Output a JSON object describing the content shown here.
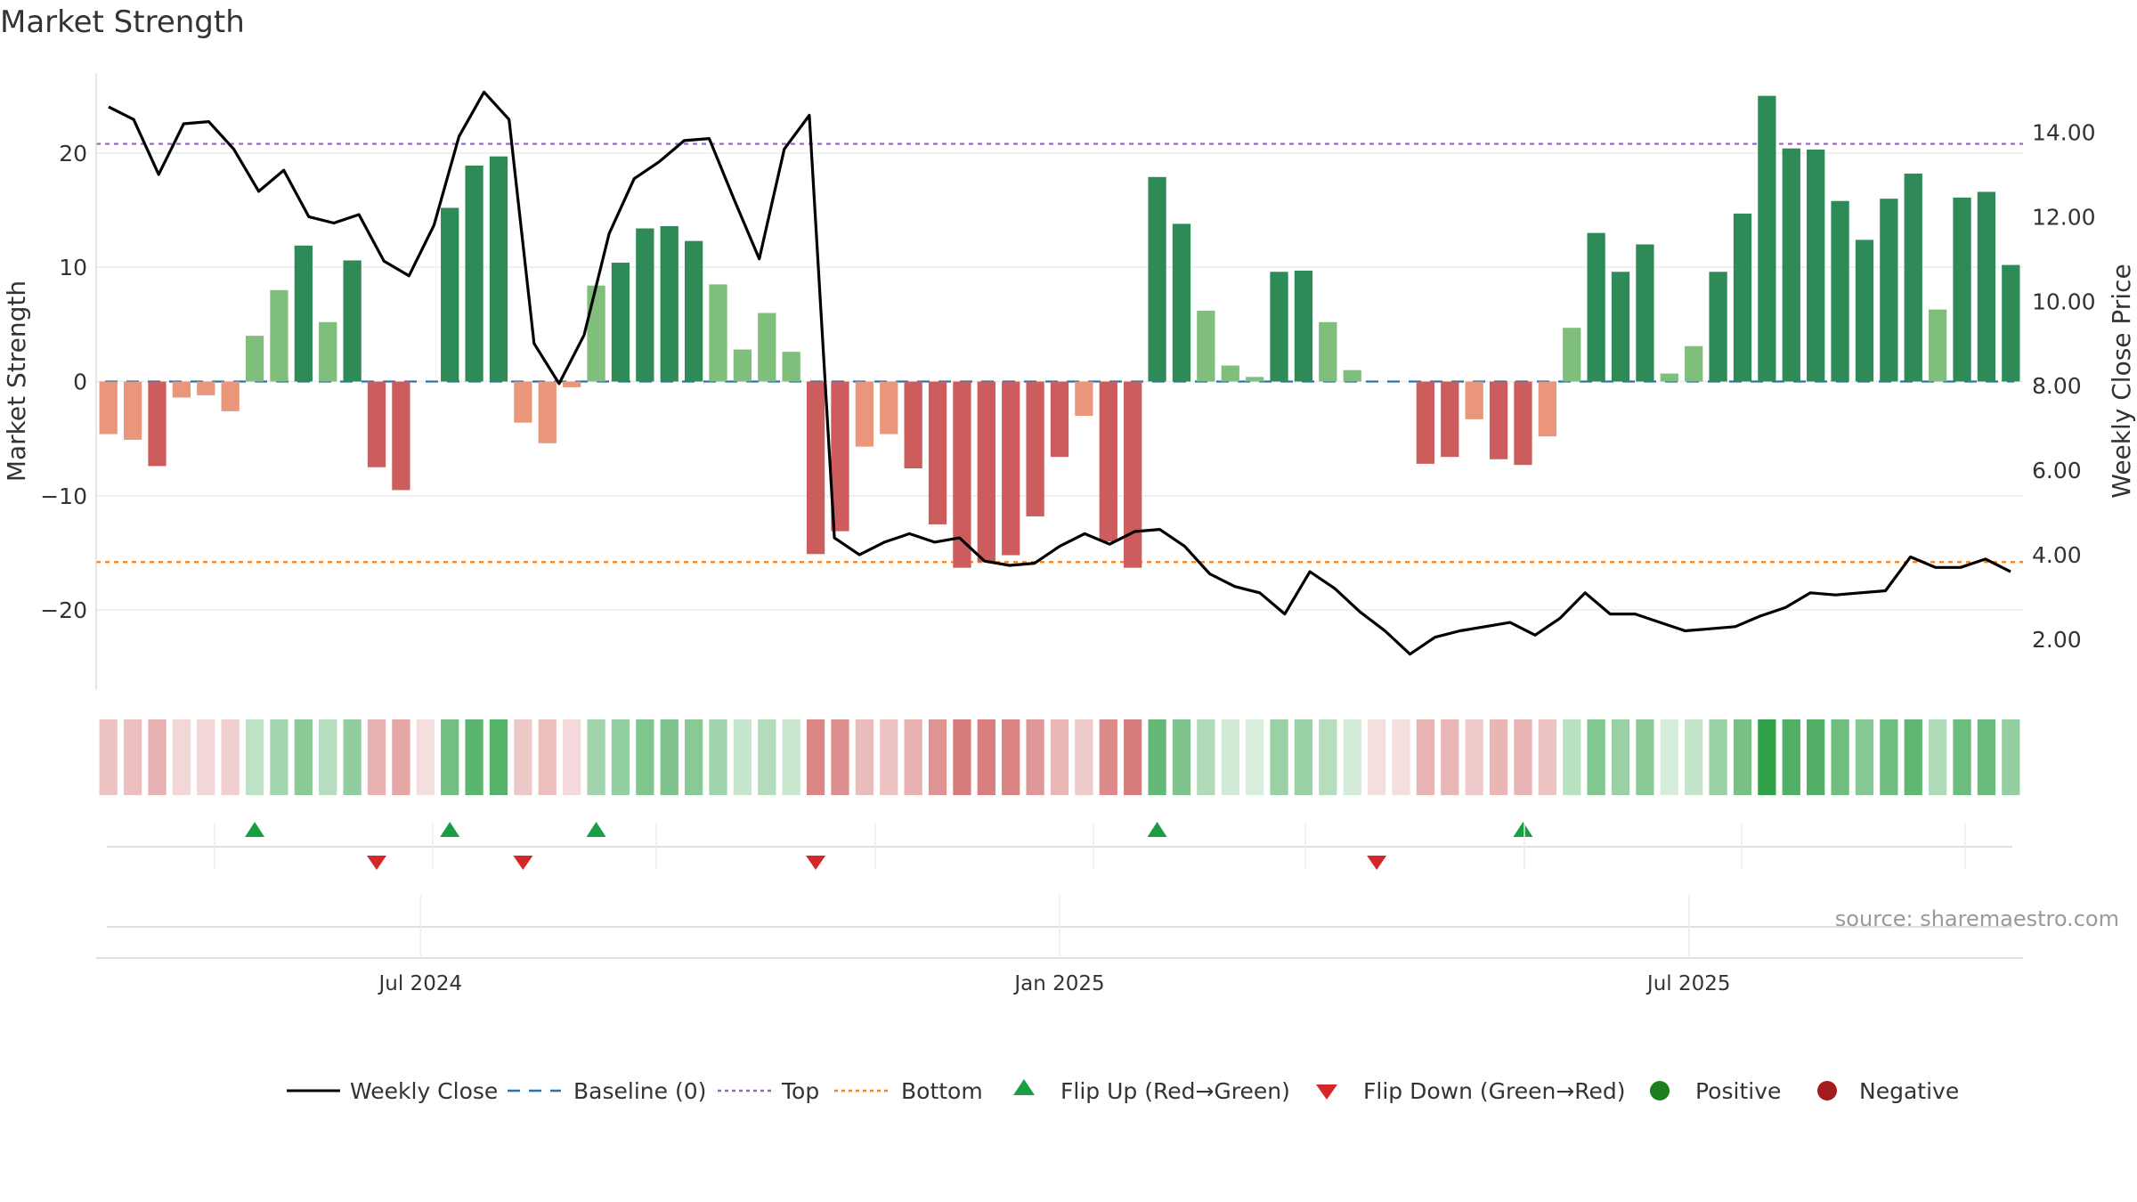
{
  "chart_data": {
    "type": "bar",
    "title": "Market Strength",
    "ylabel_left": "Market Strength",
    "ylabel_right": "Weekly Close Price",
    "ylim_left": [
      -27,
      27
    ],
    "ylim_right": [
      0.8,
      15.4
    ],
    "left_ticks": [
      {
        "value": 20,
        "label": "20"
      },
      {
        "value": 10,
        "label": "10"
      },
      {
        "value": 0,
        "label": "0"
      },
      {
        "value": -10,
        "label": "−10"
      },
      {
        "value": -20,
        "label": "−20"
      }
    ],
    "right_ticks": [
      {
        "value": 14,
        "label": "14.00"
      },
      {
        "value": 12,
        "label": "12.00"
      },
      {
        "value": 10,
        "label": "10.00"
      },
      {
        "value": 8,
        "label": "8.00"
      },
      {
        "value": 6,
        "label": "6.00"
      },
      {
        "value": 4,
        "label": "4.00"
      },
      {
        "value": 2,
        "label": "2.00"
      }
    ],
    "x_ticks": [
      {
        "week": 13.3,
        "label": "Jul 2024"
      },
      {
        "week": 39.5,
        "label": "Jan 2025"
      },
      {
        "week": 65.3,
        "label": "Jul 2025"
      }
    ],
    "top_line": 20.8,
    "bottom_line": -15.8,
    "strength": [
      -4.6,
      -5.1,
      -7.4,
      -1.4,
      -1.2,
      -2.6,
      4.0,
      8.0,
      11.9,
      5.2,
      10.6,
      -7.5,
      -9.5,
      0,
      15.2,
      18.9,
      19.7,
      -3.6,
      -5.4,
      -0.5,
      8.4,
      10.4,
      13.4,
      13.6,
      12.3,
      8.5,
      2.8,
      6.0,
      2.6,
      -15.1,
      -13.1,
      -5.7,
      -4.6,
      -7.6,
      -12.5,
      -16.3,
      -15.8,
      -15.2,
      -11.8,
      -6.6,
      -3.0,
      -14.0,
      -16.3,
      17.9,
      13.8,
      6.2,
      1.4,
      0.4,
      9.6,
      9.7,
      5.2,
      1.0,
      0,
      0,
      -7.2,
      -6.6,
      -3.3,
      -6.8,
      -7.3,
      -4.8,
      4.7,
      13.0,
      9.6,
      12.0,
      0.7,
      3.1,
      9.6,
      14.7,
      25.0,
      20.4,
      20.3,
      15.8,
      12.4,
      16.0,
      18.2,
      6.3,
      16.1,
      16.6,
      10.2
    ],
    "weekly_close": [
      14.6,
      14.3,
      13.0,
      14.2,
      14.25,
      13.6,
      12.6,
      13.1,
      12.0,
      11.85,
      12.05,
      10.95,
      10.6,
      11.8,
      13.9,
      14.95,
      14.3,
      9.0,
      8.05,
      9.2,
      11.6,
      12.9,
      13.3,
      13.8,
      13.85,
      12.4,
      11.0,
      13.6,
      14.4,
      4.4,
      4.0,
      4.3,
      4.5,
      4.3,
      4.4,
      3.85,
      3.75,
      3.8,
      4.2,
      4.5,
      4.25,
      4.55,
      4.6,
      4.2,
      3.55,
      3.25,
      3.1,
      2.6,
      3.6,
      3.2,
      2.65,
      2.2,
      1.65,
      2.05,
      2.2,
      2.3,
      2.4,
      2.1,
      2.5,
      3.1,
      2.6,
      2.6,
      2.4,
      2.2,
      2.25,
      2.3,
      2.55,
      2.75,
      3.1,
      3.05,
      3.1,
      3.15,
      3.95,
      3.7,
      3.7,
      3.9,
      3.6
    ],
    "flips": [
      {
        "week": 6,
        "dir": "up"
      },
      {
        "week": 11,
        "dir": "down"
      },
      {
        "week": 14,
        "dir": "up"
      },
      {
        "week": 17,
        "dir": "down"
      },
      {
        "week": 20,
        "dir": "up"
      },
      {
        "week": 29,
        "dir": "down"
      },
      {
        "week": 43,
        "dir": "up"
      },
      {
        "week": 52,
        "dir": "down"
      },
      {
        "week": 58,
        "dir": "up"
      }
    ],
    "colors": {
      "strong_positive": "#2e8b57",
      "weak_positive": "#7fbf7b",
      "strong_negative": "#cd5c5c",
      "weak_negative": "#e9967a",
      "line": "#000000",
      "baseline": "#1f77b4",
      "top": "#9467bd",
      "bottom": "#ff7f0e",
      "flip_up": "#1a9e44",
      "flip_down": "#d62728",
      "positive_dot": "#1e7d1e",
      "negative_dot": "#a41c1c"
    },
    "legend": [
      {
        "key": "weekly-close",
        "label": "Weekly Close"
      },
      {
        "key": "baseline",
        "label": "Baseline (0)"
      },
      {
        "key": "top",
        "label": "Top"
      },
      {
        "key": "bottom",
        "label": "Bottom"
      },
      {
        "key": "flip-up",
        "label": "Flip Up (Red→Green)"
      },
      {
        "key": "flip-down",
        "label": "Flip Down (Green→Red)"
      },
      {
        "key": "positive",
        "label": "Positive"
      },
      {
        "key": "negative",
        "label": "Negative"
      }
    ],
    "legend_placement": "bottom",
    "source": "source: sharemaestro.com"
  }
}
